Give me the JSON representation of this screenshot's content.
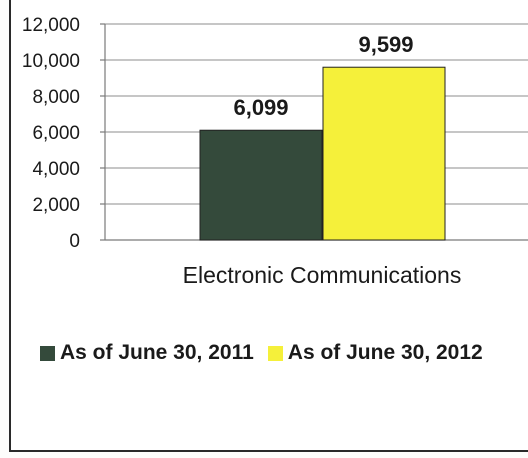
{
  "chart_data": {
    "type": "bar",
    "categories": [
      "Electronic Communications"
    ],
    "series": [
      {
        "name": "As of June 30, 2011",
        "values": [
          6099
        ],
        "value_label": "6,099",
        "color": "#344a3b"
      },
      {
        "name": "As of June 30, 2012",
        "values": [
          9599
        ],
        "value_label": "9,599",
        "color": "#f5f03a"
      }
    ],
    "ylim": [
      0,
      12000
    ],
    "yticks": [
      0,
      2000,
      4000,
      6000,
      8000,
      10000,
      12000
    ],
    "ytick_labels": [
      "0",
      "2,000",
      "4,000",
      "6,000",
      "8,000",
      "10,000",
      "12,000"
    ],
    "grid": true,
    "legend_position": "bottom",
    "title": "",
    "xlabel": "",
    "ylabel": ""
  }
}
